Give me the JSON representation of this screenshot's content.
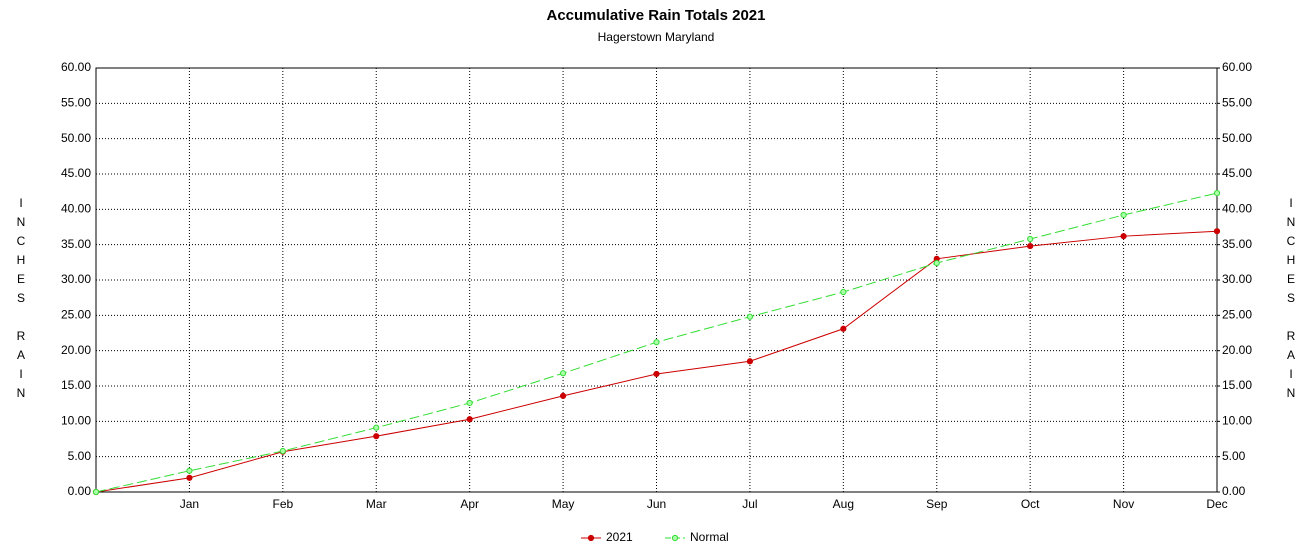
{
  "chart_data": {
    "type": "line",
    "title": "Accumulative Rain Totals 2021",
    "subtitle": "Hagerstown Maryland",
    "y_label": "INCHES RAIN",
    "y2_label": "INCHES RAIN",
    "categories": [
      null,
      "Jan",
      "Feb",
      "Mar",
      "Apr",
      "May",
      "Jun",
      "Jul",
      "Aug",
      "Sep",
      "Oct",
      "Nov",
      "Dec"
    ],
    "series": [
      {
        "name": "2021",
        "color": "#cc0000",
        "dashed": false,
        "values": [
          0,
          2.0,
          5.7,
          7.9,
          10.3,
          13.6,
          16.7,
          18.5,
          23.1,
          33.0,
          34.8,
          36.2,
          36.9
        ]
      },
      {
        "name": "Normal",
        "color": "#33dd33",
        "dashed": true,
        "values": [
          0,
          3.0,
          5.8,
          9.1,
          12.6,
          16.8,
          21.2,
          24.8,
          28.3,
          32.4,
          35.8,
          39.2,
          42.3
        ]
      }
    ],
    "ylim": [
      0,
      60
    ],
    "yticks": [
      {
        "value": 0,
        "label": "0.00"
      },
      {
        "value": 5,
        "label": "5.00"
      },
      {
        "value": 10,
        "label": "10.00"
      },
      {
        "value": 15,
        "label": "15.00"
      },
      {
        "value": 20,
        "label": "20.00"
      },
      {
        "value": 25,
        "label": "25.00"
      },
      {
        "value": 30,
        "label": "30.00"
      },
      {
        "value": 35,
        "label": "35.00"
      },
      {
        "value": 40,
        "label": "40.00"
      },
      {
        "value": 45,
        "label": "45.00"
      },
      {
        "value": 50,
        "label": "50.00"
      },
      {
        "value": 55,
        "label": "55.00"
      },
      {
        "value": 60,
        "label": "60.00"
      }
    ],
    "y2lim": [
      0,
      60
    ],
    "y2ticks": [
      {
        "value": 0,
        "label": "0.00"
      },
      {
        "value": 5,
        "label": "5.00"
      },
      {
        "value": 10,
        "label": "10.00"
      },
      {
        "value": 15,
        "label": "15.00"
      },
      {
        "value": 20,
        "label": "20.00"
      },
      {
        "value": 25,
        "label": "25.00"
      },
      {
        "value": 30,
        "label": "30.00"
      },
      {
        "value": 35,
        "label": "35.00"
      },
      {
        "value": 40,
        "label": "40.00"
      },
      {
        "value": 45,
        "label": "45.00"
      },
      {
        "value": 50,
        "label": "50.00"
      },
      {
        "value": 55,
        "label": "55.00"
      },
      {
        "value": 60,
        "label": "60.00"
      }
    ],
    "grid": true,
    "legend": "bottom"
  }
}
